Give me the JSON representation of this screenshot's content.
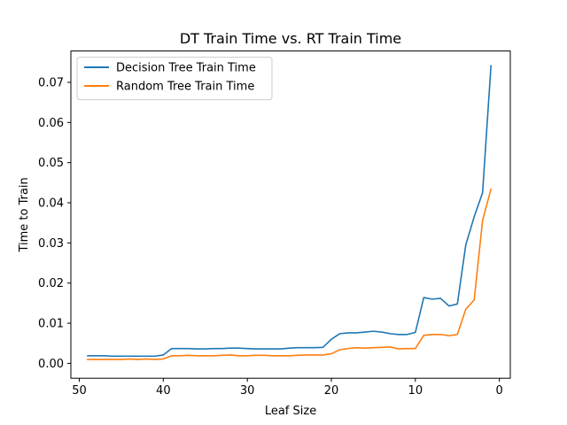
{
  "chart_data": {
    "type": "line",
    "title": "DT Train Time vs. RT Train Time",
    "xlabel": "Leaf Size",
    "ylabel": "Time to Train",
    "xlim": [
      51,
      -1.3
    ],
    "ylim": [
      -0.0037,
      0.0778
    ],
    "x_reversed": true,
    "grid": false,
    "legend_position": "top-left",
    "xticks": [
      50,
      40,
      30,
      20,
      10,
      0
    ],
    "xtick_labels": [
      "50",
      "40",
      "30",
      "20",
      "10",
      "0"
    ],
    "yticks": [
      0.0,
      0.01,
      0.02,
      0.03,
      0.04,
      0.05,
      0.06,
      0.07
    ],
    "ytick_labels": [
      "0.00",
      "0.01",
      "0.02",
      "0.03",
      "0.04",
      "0.05",
      "0.06",
      "0.07"
    ],
    "x": [
      49,
      48,
      47,
      46,
      45,
      44,
      43,
      42,
      41,
      40,
      39,
      38,
      37,
      36,
      35,
      34,
      33,
      32,
      31,
      30,
      29,
      28,
      27,
      26,
      25,
      24,
      23,
      22,
      21,
      20,
      19,
      18,
      17,
      16,
      15,
      14,
      13,
      12,
      11,
      10,
      9,
      8,
      7,
      6,
      5,
      4,
      3,
      2,
      1
    ],
    "series": [
      {
        "name": "Decision Tree Train Time",
        "color": "#1f77b4",
        "values": [
          0.0019,
          0.0019,
          0.0019,
          0.0018,
          0.0018,
          0.0018,
          0.0018,
          0.0018,
          0.0018,
          0.0021,
          0.0037,
          0.0037,
          0.0037,
          0.0036,
          0.0036,
          0.0037,
          0.0037,
          0.0038,
          0.0038,
          0.0037,
          0.0036,
          0.0036,
          0.0036,
          0.0036,
          0.0038,
          0.0039,
          0.0039,
          0.0039,
          0.004,
          0.006,
          0.0074,
          0.0076,
          0.0076,
          0.0078,
          0.008,
          0.0078,
          0.0074,
          0.0072,
          0.0072,
          0.0077,
          0.0164,
          0.016,
          0.0162,
          0.0143,
          0.0148,
          0.0295,
          0.0365,
          0.0425,
          0.0741
        ]
      },
      {
        "name": "Random Tree Train Time",
        "color": "#ff7f0e",
        "values": [
          0.001,
          0.001,
          0.001,
          0.001,
          0.001,
          0.0011,
          0.001,
          0.0011,
          0.001,
          0.0011,
          0.0019,
          0.0019,
          0.002,
          0.0019,
          0.0019,
          0.0019,
          0.002,
          0.0021,
          0.0019,
          0.0019,
          0.002,
          0.002,
          0.0019,
          0.0019,
          0.0019,
          0.002,
          0.0021,
          0.0021,
          0.0021,
          0.0024,
          0.0034,
          0.0037,
          0.0039,
          0.0038,
          0.0039,
          0.004,
          0.0041,
          0.0036,
          0.0037,
          0.0037,
          0.007,
          0.0072,
          0.0072,
          0.0069,
          0.0072,
          0.0135,
          0.0158,
          0.0356,
          0.0434
        ]
      }
    ]
  }
}
